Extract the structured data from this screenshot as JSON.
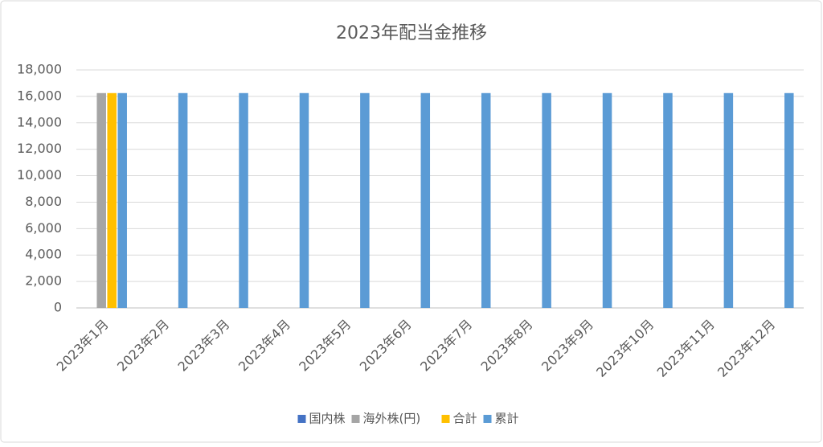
{
  "chart_data": {
    "type": "bar",
    "title": "2023年配当金推移",
    "categories": [
      "2023年1月",
      "2023年2月",
      "2023年3月",
      "2023年4月",
      "2023年5月",
      "2023年6月",
      "2023年7月",
      "2023年8月",
      "2023年9月",
      "2023年10月",
      "2023年11月",
      "2023年12月"
    ],
    "series": [
      {
        "name": "国内株",
        "color": "#4472c4",
        "values": [
          0,
          null,
          null,
          null,
          null,
          null,
          null,
          null,
          null,
          null,
          null,
          null
        ]
      },
      {
        "name": "海外株(円)",
        "color": "#a5a5a5",
        "values": [
          16250,
          null,
          null,
          null,
          null,
          null,
          null,
          null,
          null,
          null,
          null,
          null
        ]
      },
      {
        "name": "合計",
        "color": "#ffc000",
        "values": [
          16250,
          null,
          null,
          null,
          null,
          null,
          null,
          null,
          null,
          null,
          null,
          null
        ]
      },
      {
        "name": "累計",
        "color": "#5b9bd5",
        "values": [
          16250,
          16250,
          16250,
          16250,
          16250,
          16250,
          16250,
          16250,
          16250,
          16250,
          16250,
          16250
        ]
      }
    ],
    "ylim": [
      0,
      18000
    ],
    "yticks": [
      0,
      {
        "value": 2000,
        "label": "2,000"
      },
      {
        "value": 4000,
        "label": "4,000"
      },
      {
        "value": 6000,
        "label": "6,000"
      },
      {
        "value": 8000,
        "label": "8,000"
      },
      {
        "value": 10000,
        "label": "10,000"
      },
      {
        "value": 12000,
        "label": "12,000"
      },
      {
        "value": 14000,
        "label": "14,000"
      },
      {
        "value": 16000,
        "label": "16,000"
      },
      {
        "value": 18000,
        "label": "18,000"
      }
    ],
    "grid": true,
    "legend": "bottom"
  }
}
